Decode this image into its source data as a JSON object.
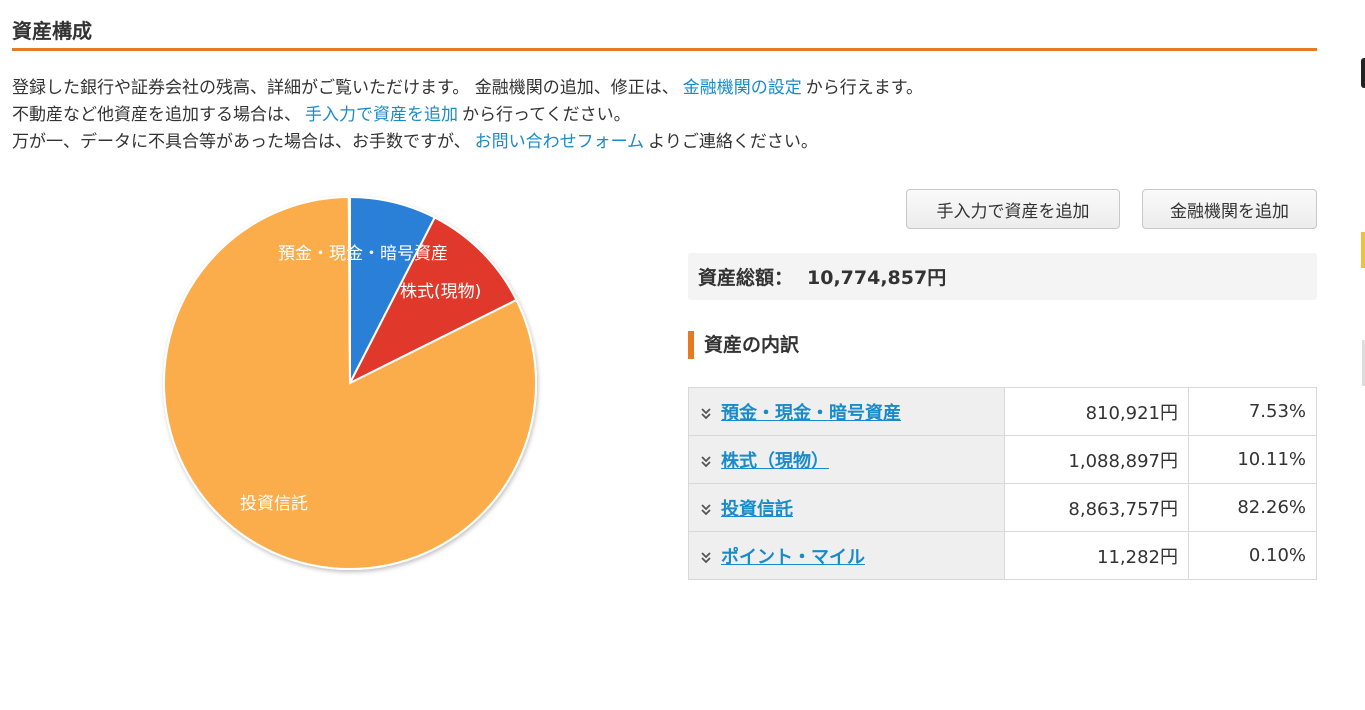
{
  "header": {
    "title": "資産構成"
  },
  "intro": {
    "line1_pre": "登録した銀行や証券会社の残高、詳細がご覧いただけます。 金融機関の追加、修正は、",
    "line1_link": "金融機関の設定",
    "line1_post": "から行えます。",
    "line2_pre": "不動産など他資産を追加する場合は、",
    "line2_link": "手入力で資産を追加",
    "line2_post": "から行ってください。",
    "line3_pre": "万が一、データに不具合等があった場合は、お手数ですが、",
    "line3_link": "お問い合わせフォーム",
    "line3_post": "よりご連絡ください。"
  },
  "buttons": {
    "manual_add": "手入力で資産を追加",
    "add_institution": "金融機関を追加"
  },
  "total": {
    "label": "資産総額：",
    "value": "10,774,857円"
  },
  "breakdown": {
    "heading": "資産の内訳",
    "rows": [
      {
        "name": "預金・現金・暗号資産",
        "amount": "810,921円",
        "percent": "7.53%"
      },
      {
        "name": "株式（現物）",
        "amount": "1,088,897円",
        "percent": "10.11%"
      },
      {
        "name": "投資信託",
        "amount": "8,863,757円",
        "percent": "82.26%"
      },
      {
        "name": "ポイント・マイル",
        "amount": "11,282円",
        "percent": "0.10%"
      }
    ]
  },
  "colors": {
    "accent": "#e8791f",
    "link": "#1a8bc9"
  },
  "chart_data": {
    "type": "pie",
    "slices": [
      {
        "label": "預金・現金・暗号資産",
        "value": 7.53,
        "color": "#2a7fd6"
      },
      {
        "label": "株式(現物)",
        "value": 10.11,
        "color": "#e0392a"
      },
      {
        "label": "投資信託",
        "value": 82.26,
        "color": "#fbad4b"
      },
      {
        "label": "",
        "value": 0.1,
        "color": "#6aa84f"
      }
    ]
  }
}
